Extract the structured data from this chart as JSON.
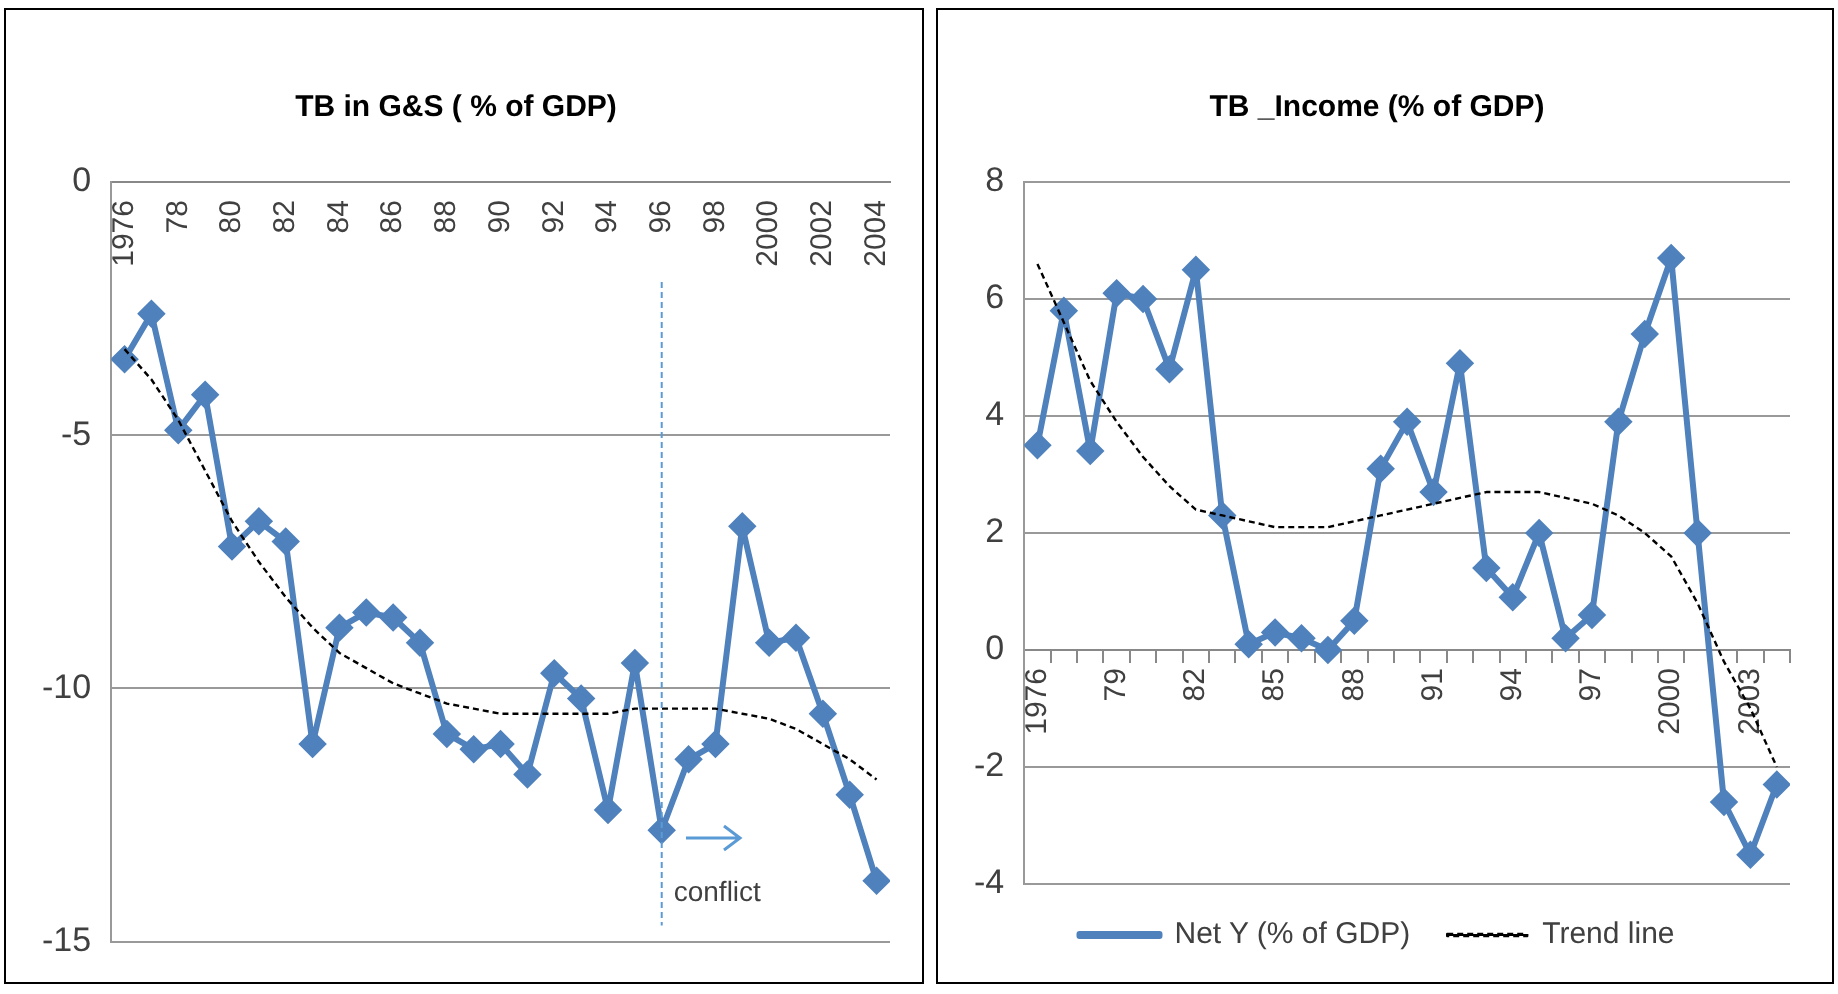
{
  "chart_data": [
    {
      "type": "line",
      "title": "TB in G&S ( % of GDP)",
      "x": [
        1976,
        1977,
        1978,
        1979,
        1980,
        1981,
        1982,
        1983,
        1984,
        1985,
        1986,
        1987,
        1988,
        1989,
        1990,
        1991,
        1992,
        1993,
        1994,
        1995,
        1996,
        1997,
        1998,
        1999,
        2000,
        2001,
        2002,
        2003,
        2004
      ],
      "series": [
        {
          "color": "#4f81bd",
          "marker": "diamond",
          "line_style": "solid",
          "values": [
            -3.5,
            -2.6,
            -4.9,
            -4.2,
            -7.2,
            -6.7,
            -7.1,
            -11.1,
            -8.8,
            -8.5,
            -8.6,
            -9.1,
            -10.9,
            -11.2,
            -11.1,
            -11.7,
            -9.7,
            -10.2,
            -12.4,
            -9.5,
            -12.8,
            -11.4,
            -11.1,
            -6.8,
            -9.1,
            -9.0,
            -10.5,
            -12.1,
            -13.8
          ]
        },
        {
          "color": "#000000",
          "marker": "none",
          "line_style": "dashed",
          "values": [
            -3.3,
            -3.9,
            -4.7,
            -5.7,
            -6.7,
            -7.5,
            -8.2,
            -8.8,
            -9.3,
            -9.6,
            -9.9,
            -10.1,
            -10.3,
            -10.4,
            -10.5,
            -10.5,
            -10.5,
            -10.5,
            -10.5,
            -10.4,
            -10.4,
            -10.4,
            -10.4,
            -10.5,
            -10.6,
            -10.8,
            -11.1,
            -11.4,
            -11.8
          ]
        }
      ],
      "xlim": [
        1975.5,
        2004.5
      ],
      "xticks": [
        {
          "value": 1976,
          "label": "1976"
        },
        {
          "value": 1978,
          "label": "78"
        },
        {
          "value": 1980,
          "label": "80"
        },
        {
          "value": 1982,
          "label": "82"
        },
        {
          "value": 1984,
          "label": "84"
        },
        {
          "value": 1986,
          "label": "86"
        },
        {
          "value": 1988,
          "label": "88"
        },
        {
          "value": 1990,
          "label": "90"
        },
        {
          "value": 1992,
          "label": "92"
        },
        {
          "value": 1994,
          "label": "94"
        },
        {
          "value": 1996,
          "label": "96"
        },
        {
          "value": 1998,
          "label": "98"
        },
        {
          "value": 2000,
          "label": "2000"
        },
        {
          "value": 2002,
          "label": "2002"
        },
        {
          "value": 2004,
          "label": "2004"
        }
      ],
      "ylim": [
        -15,
        0
      ],
      "yticks": [
        -15,
        -10,
        -5,
        0
      ],
      "grid": "y",
      "legend": false,
      "ref_lines": [
        {
          "axis": "x",
          "value": 1996,
          "label": "conflict",
          "color": "#5b9bd5",
          "line_style": "dashed"
        }
      ]
    },
    {
      "type": "line",
      "title": "TB _Income (% of GDP)",
      "x": [
        1976,
        1977,
        1978,
        1979,
        1980,
        1981,
        1982,
        1983,
        1984,
        1985,
        1986,
        1987,
        1988,
        1989,
        1990,
        1991,
        1992,
        1993,
        1994,
        1995,
        1996,
        1997,
        1998,
        1999,
        2000,
        2001,
        2002,
        2003,
        2004
      ],
      "series": [
        {
          "name": "Net Y (% of GDP)",
          "color": "#4f81bd",
          "marker": "diamond",
          "line_style": "solid",
          "values": [
            3.5,
            5.8,
            3.4,
            6.1,
            6.0,
            4.8,
            6.5,
            2.3,
            0.1,
            0.3,
            0.2,
            0.0,
            0.5,
            3.1,
            3.9,
            2.7,
            4.9,
            1.4,
            0.9,
            2.0,
            0.2,
            0.6,
            3.9,
            5.4,
            6.7,
            2.0,
            -2.6,
            -3.5,
            -2.3
          ]
        },
        {
          "name": "Trend line",
          "color": "#000000",
          "marker": "none",
          "line_style": "dashed",
          "values": [
            6.6,
            5.6,
            4.6,
            3.9,
            3.3,
            2.8,
            2.4,
            2.3,
            2.2,
            2.1,
            2.1,
            2.1,
            2.2,
            2.3,
            2.4,
            2.5,
            2.6,
            2.7,
            2.7,
            2.7,
            2.6,
            2.5,
            2.3,
            2.0,
            1.6,
            0.8,
            -0.2,
            -1.0,
            -2.0
          ]
        }
      ],
      "xlim": [
        1975.5,
        2004.5
      ],
      "xticks": [
        {
          "value": 1975.5,
          "label": null
        },
        {
          "value": 1976,
          "label": "1976"
        },
        {
          "value": 1976.5,
          "label": null
        },
        {
          "value": 1977.5,
          "label": null
        },
        {
          "value": 1978.5,
          "label": null
        },
        {
          "value": 1979,
          "label": "79"
        },
        {
          "value": 1979.5,
          "label": null
        },
        {
          "value": 1980.5,
          "label": null
        },
        {
          "value": 1981.5,
          "label": null
        },
        {
          "value": 1982,
          "label": "82"
        },
        {
          "value": 1982.5,
          "label": null
        },
        {
          "value": 1983.5,
          "label": null
        },
        {
          "value": 1984.5,
          "label": null
        },
        {
          "value": 1985,
          "label": "85"
        },
        {
          "value": 1985.5,
          "label": null
        },
        {
          "value": 1986.5,
          "label": null
        },
        {
          "value": 1987.5,
          "label": null
        },
        {
          "value": 1988,
          "label": "88"
        },
        {
          "value": 1988.5,
          "label": null
        },
        {
          "value": 1989.5,
          "label": null
        },
        {
          "value": 1990.5,
          "label": null
        },
        {
          "value": 1991,
          "label": "91"
        },
        {
          "value": 1991.5,
          "label": null
        },
        {
          "value": 1992.5,
          "label": null
        },
        {
          "value": 1993.5,
          "label": null
        },
        {
          "value": 1994,
          "label": "94"
        },
        {
          "value": 1994.5,
          "label": null
        },
        {
          "value": 1995.5,
          "label": null
        },
        {
          "value": 1996.5,
          "label": null
        },
        {
          "value": 1997,
          "label": "97"
        },
        {
          "value": 1997.5,
          "label": null
        },
        {
          "value": 1998.5,
          "label": null
        },
        {
          "value": 1999.5,
          "label": null
        },
        {
          "value": 2000,
          "label": "2000"
        },
        {
          "value": 2000.5,
          "label": null
        },
        {
          "value": 2001.5,
          "label": null
        },
        {
          "value": 2002.5,
          "label": null
        },
        {
          "value": 2003,
          "label": "2003"
        },
        {
          "value": 2003.5,
          "label": null
        },
        {
          "value": 2004.5,
          "label": null
        }
      ],
      "ylim": [
        -4,
        8
      ],
      "yticks": [
        -4,
        -2,
        0,
        2,
        4,
        6,
        8
      ],
      "grid": "y",
      "legend": "bottom"
    }
  ]
}
